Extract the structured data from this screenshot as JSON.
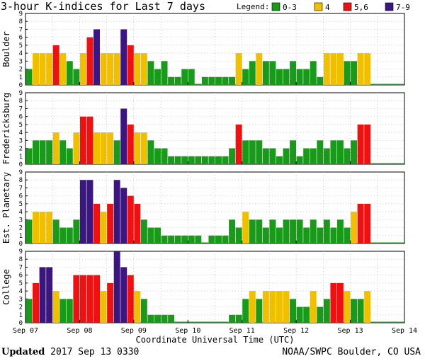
{
  "chart_data": {
    "type": "bar",
    "title": "3-hour K-indices for Last 7 days",
    "xlabel": "Coordinate Universal Time (UTC)",
    "x_ticks": [
      "Sep 07",
      "Sep 08",
      "Sep 09",
      "Sep 10",
      "Sep 11",
      "Sep 12",
      "Sep 13",
      "Sep 14"
    ],
    "y_ticks": [
      "0",
      "1",
      "2",
      "3",
      "4",
      "5",
      "6",
      "7",
      "8",
      "9"
    ],
    "ylim": [
      0,
      9
    ],
    "bins_per_day": 8,
    "legend": {
      "title": "Legend:",
      "entries": [
        {
          "label": "0-3",
          "color": "#1a9a1a"
        },
        {
          "label": "4",
          "color": "#f0c000"
        },
        {
          "label": "5,6",
          "color": "#ee1111"
        },
        {
          "label": "7-9",
          "color": "#3c1680"
        }
      ]
    },
    "series": [
      {
        "name": "Boulder",
        "values": [
          2,
          4,
          4,
          4,
          5,
          4,
          3,
          2,
          4,
          6,
          7,
          4,
          4,
          4,
          7,
          5,
          4,
          4,
          3,
          2,
          3,
          1,
          1,
          2,
          2,
          0,
          1,
          1,
          1,
          1,
          1,
          4,
          2,
          3,
          4,
          3,
          3,
          2,
          2,
          3,
          2,
          2,
          3,
          1,
          4,
          4,
          4,
          3,
          3,
          4,
          4,
          0,
          0,
          0,
          0,
          0
        ]
      },
      {
        "name": "Fredericksburg",
        "values": [
          2,
          3,
          3,
          3,
          4,
          3,
          2,
          4,
          6,
          6,
          4,
          4,
          4,
          3,
          7,
          5,
          4,
          4,
          3,
          2,
          2,
          1,
          1,
          1,
          1,
          1,
          1,
          1,
          1,
          1,
          2,
          5,
          3,
          3,
          3,
          2,
          2,
          1,
          2,
          3,
          1,
          2,
          2,
          3,
          2,
          3,
          3,
          2,
          3,
          5,
          5,
          0,
          0,
          0,
          0,
          0
        ]
      },
      {
        "name": "Est. Planetary",
        "values": [
          3,
          4,
          4,
          4,
          3,
          2,
          2,
          3,
          8,
          8,
          5,
          4,
          5,
          8,
          7,
          6,
          5,
          3,
          2,
          2,
          1,
          1,
          1,
          1,
          1,
          1,
          0,
          1,
          1,
          1,
          3,
          2,
          4,
          3,
          3,
          2,
          3,
          2,
          3,
          3,
          3,
          2,
          3,
          2,
          3,
          2,
          3,
          2,
          4,
          5,
          5,
          0,
          0,
          0,
          0,
          0
        ]
      },
      {
        "name": "College",
        "values": [
          3,
          5,
          7,
          7,
          4,
          3,
          3,
          6,
          6,
          6,
          6,
          4,
          5,
          9,
          7,
          6,
          4,
          3,
          1,
          1,
          1,
          1,
          0,
          0,
          0,
          0,
          0,
          0,
          0,
          0,
          1,
          1,
          3,
          4,
          3,
          4,
          4,
          4,
          4,
          3,
          2,
          2,
          4,
          2,
          3,
          5,
          5,
          4,
          3,
          3,
          4,
          0,
          0,
          0,
          0,
          0
        ]
      }
    ]
  },
  "footer": {
    "updated_label": "Updated",
    "updated_time": " 2017 Sep 13 0330",
    "source": "NOAA/SWPC Boulder, CO USA"
  }
}
